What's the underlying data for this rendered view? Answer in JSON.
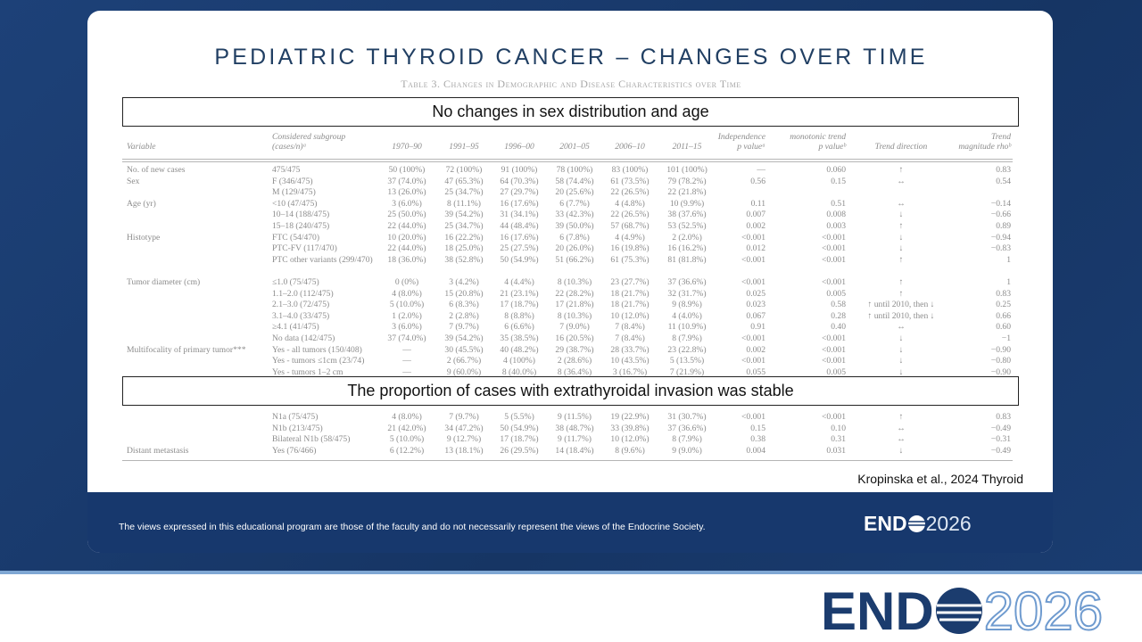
{
  "slide": {
    "title": "PEDIATRIC THYROID CANCER – CHANGES OVER TIME",
    "table": {
      "caption": "Table 3. Changes in Demographic and Disease Characteristics over Time",
      "header": [
        [
          "Variable"
        ],
        [
          "Considered subgroup",
          "(cases/n)ᵃ"
        ],
        [
          "1970–90"
        ],
        [
          "1991–95"
        ],
        [
          "1996–00"
        ],
        [
          "2001–05"
        ],
        [
          "2006–10"
        ],
        [
          "2011–15"
        ],
        [
          "Independence",
          "p valueᵃ"
        ],
        [
          "monotonic trend",
          "p valueᵇ"
        ],
        [
          "Trend direction"
        ],
        [
          "Trend",
          "magnitude rhoᵇ"
        ]
      ],
      "rows": [
        [
          "No. of new cases",
          "475/475",
          "50 (100%)",
          "72 (100%)",
          "91 (100%)",
          "78 (100%)",
          "83 (100%)",
          "101 (100%)",
          "—",
          "0.060",
          "↑",
          "0.83"
        ],
        [
          "Sex",
          "F (346/475)",
          "37 (74.0%)",
          "47 (65.3%)",
          "64 (70.3%)",
          "58 (74.4%)",
          "61 (73.5%)",
          "79 (78.2%)",
          "0.56",
          "0.15",
          "↔",
          "0.54"
        ],
        [
          null,
          "M (129/475)",
          "13 (26.0%)",
          "25 (34.7%)",
          "27 (29.7%)",
          "20 (25.6%)",
          "22 (26.5%)",
          "22 (21.8%)",
          null,
          null,
          null,
          null
        ],
        [
          "Age (yr)",
          "<10 (47/475)",
          "3 (6.0%)",
          "8 (11.1%)",
          "16 (17.6%)",
          "6 (7.7%)",
          "4 (4.8%)",
          "10 (9.9%)",
          "0.11",
          "0.51",
          "↔",
          "−0.14"
        ],
        [
          null,
          "10–14 (188/475)",
          "25 (50.0%)",
          "39 (54.2%)",
          "31 (34.1%)",
          "33 (42.3%)",
          "22 (26.5%)",
          "38 (37.6%)",
          "0.007",
          "0.008",
          "↓",
          "−0.66"
        ],
        [
          null,
          "15–18 (240/475)",
          "22 (44.0%)",
          "25 (34.7%)",
          "44 (48.4%)",
          "39 (50.0%)",
          "57 (68.7%)",
          "53 (52.5%)",
          "0.002",
          "0.003",
          "↑",
          "0.89"
        ],
        [
          "Histotype",
          "FTC (54/470)",
          "10 (20.0%)",
          "16 (22.2%)",
          "16 (17.6%)",
          "6 (7.8%)",
          "4 (4.9%)",
          "2 (2.0%)",
          "<0.001",
          "<0.001",
          "↓",
          "−0.94"
        ],
        [
          null,
          "PTC-FV (117/470)",
          "22 (44.0%)",
          "18 (25.0%)",
          "25 (27.5%)",
          "20 (26.0%)",
          "16 (19.8%)",
          "16 (16.2%)",
          "0.012",
          "<0.001",
          "↓",
          "−0.83"
        ],
        [
          null,
          "PTC other variants (299/470)",
          "18 (36.0%)",
          "38 (52.8%)",
          "50 (54.9%)",
          "51 (66.2%)",
          "61 (75.3%)",
          "81 (81.8%)",
          "<0.001",
          "<0.001",
          "↑",
          "1"
        ],
        [
          "Tumor diameter (cm)",
          "≤1.0 (75/475)",
          "0 (0%)",
          "3 (4.2%)",
          "4 (4.4%)",
          "8 (10.3%)",
          "23 (27.7%)",
          "37 (36.6%)",
          "<0.001",
          "<0.001",
          "↑",
          "1"
        ],
        [
          null,
          "1.1–2.0 (112/475)",
          "4 (8.0%)",
          "15 (20.8%)",
          "21 (23.1%)",
          "22 (28.2%)",
          "18 (21.7%)",
          "32 (31.7%)",
          "0.025",
          "0.005",
          "↑",
          "0.83"
        ],
        [
          null,
          "2.1–3.0 (72/475)",
          "5 (10.0%)",
          "6 (8.3%)",
          "17 (18.7%)",
          "17 (21.8%)",
          "18 (21.7%)",
          "9 (8.9%)",
          "0.023",
          "0.58",
          "↑ until 2010, then ↓",
          "0.25"
        ],
        [
          null,
          "3.1–4.0 (33/475)",
          "1 (2.0%)",
          "2 (2.8%)",
          "8 (8.8%)",
          "8 (10.3%)",
          "10 (12.0%)",
          "4 (4.0%)",
          "0.067",
          "0.28",
          "↑ until 2010, then ↓",
          "0.66"
        ],
        [
          null,
          "≥4.1 (41/475)",
          "3 (6.0%)",
          "7 (9.7%)",
          "6 (6.6%)",
          "7 (9.0%)",
          "7 (8.4%)",
          "11 (10.9%)",
          "0.91",
          "0.40",
          "↔",
          "0.60"
        ],
        [
          null,
          "No data (142/475)",
          "37 (74.0%)",
          "39 (54.2%)",
          "35 (38.5%)",
          "16 (20.5%)",
          "7 (8.4%)",
          "8 (7.9%)",
          "<0.001",
          "<0.001",
          "↓",
          "−1"
        ],
        [
          "Multifocality of primary tumor***",
          "Yes - all tumors (150/408)",
          "—",
          "30 (45.5%)",
          "40 (48.2%)",
          "29 (38.7%)",
          "28 (33.7%)",
          "23 (22.8%)",
          "0.002",
          "<0.001",
          "↓",
          "−0.90"
        ],
        [
          null,
          "Yes - tumors ≤1cm (23/74)",
          "—",
          "2 (66.7%)",
          "4 (100%)",
          "2 (28.6%)",
          "10 (43.5%)",
          "5 (13.5%)",
          "<0.001",
          "<0.001",
          "↓",
          "−0.80"
        ],
        [
          null,
          "Yes - tumors 1–2 cm",
          "—",
          "9 (60.0%)",
          "8 (40.0%)",
          "8 (36.4%)",
          "3 (16.7%)",
          "7 (21.9%)",
          "0.055",
          "0.005",
          "↓",
          "−0.90"
        ],
        [
          null,
          "N1a (75/475)",
          "4 (8.0%)",
          "7 (9.7%)",
          "5 (5.5%)",
          "9 (11.5%)",
          "19 (22.9%)",
          "31 (30.7%)",
          "<0.001",
          "<0.001",
          "↑",
          "0.83"
        ],
        [
          null,
          "N1b (213/475)",
          "21 (42.0%)",
          "34 (47.2%)",
          "50 (54.9%)",
          "38 (48.7%)",
          "33 (39.8%)",
          "37 (36.6%)",
          "0.15",
          "0.10",
          "↔",
          "−0.49"
        ],
        [
          null,
          "Bilateral N1b (58/475)",
          "5 (10.0%)",
          "9 (12.7%)",
          "17 (18.7%)",
          "9 (11.7%)",
          "10 (12.0%)",
          "8 (7.9%)",
          "0.38",
          "0.31",
          "↔",
          "−0.31"
        ],
        [
          "Distant metastasis",
          "Yes (76/466)",
          "6 (12.2%)",
          "13 (18.1%)",
          "26 (29.5%)",
          "14 (18.4%)",
          "8 (9.6%)",
          "9 (9.0%)",
          "0.004",
          "0.031",
          "↓",
          "−0.49"
        ]
      ]
    },
    "callouts": [
      "No changes in sex distribution and age",
      "The proportion of cases with extrathyroidal invasion was stable"
    ],
    "citation": "Kropinska et al., 2024 Thyroid",
    "disclaimer": "The views expressed in this educational program are those of the faculty and do not necessarily represent the views of the Endocrine Society."
  },
  "logo": {
    "prefix": "END",
    "year": "2026"
  }
}
